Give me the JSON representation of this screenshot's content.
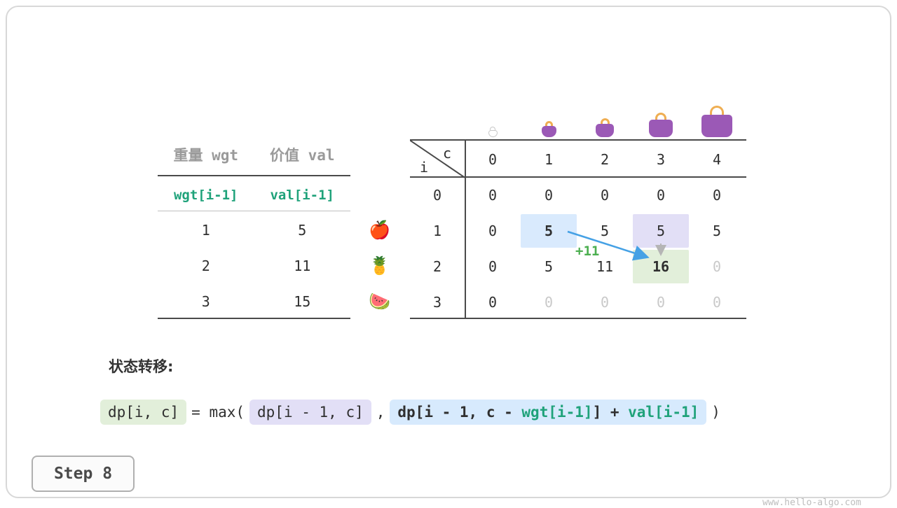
{
  "item_table": {
    "headers": [
      "重量 wgt",
      "价值 val"
    ],
    "subheaders": [
      "wgt[i-1]",
      "val[i-1]"
    ],
    "rows": [
      {
        "wgt": "1",
        "val": "5",
        "icon": "apple-icon"
      },
      {
        "wgt": "2",
        "val": "11",
        "icon": "pineapple-icon"
      },
      {
        "wgt": "3",
        "val": "15",
        "icon": "watermelon-icon"
      }
    ]
  },
  "dp_table": {
    "corner": {
      "row_var": "i",
      "col_var": "c"
    },
    "col_labels": [
      "0",
      "1",
      "2",
      "3",
      "4"
    ],
    "row_labels": [
      "0",
      "1",
      "2",
      "3"
    ],
    "bags": [
      {
        "name": "bag-capacity-0-icon",
        "style": "outline"
      },
      {
        "name": "bag-capacity-1-icon",
        "style": "purple"
      },
      {
        "name": "bag-capacity-2-icon",
        "style": "purple"
      },
      {
        "name": "bag-capacity-3-icon",
        "style": "purple"
      },
      {
        "name": "bag-capacity-4-icon",
        "style": "purple"
      }
    ],
    "cells": [
      [
        {
          "v": "0"
        },
        {
          "v": "0"
        },
        {
          "v": "0"
        },
        {
          "v": "0"
        },
        {
          "v": "0"
        }
      ],
      [
        {
          "v": "0"
        },
        {
          "v": "5",
          "bold": true,
          "hl": "blue"
        },
        {
          "v": "5"
        },
        {
          "v": "5",
          "hl": "purple"
        },
        {
          "v": "5"
        }
      ],
      [
        {
          "v": "0"
        },
        {
          "v": "5"
        },
        {
          "v": "11"
        },
        {
          "v": "16",
          "bold": true,
          "hl": "green"
        },
        {
          "v": "0",
          "dim": true
        }
      ],
      [
        {
          "v": "0"
        },
        {
          "v": "0",
          "dim": true
        },
        {
          "v": "0",
          "dim": true
        },
        {
          "v": "0",
          "dim": true
        },
        {
          "v": "0",
          "dim": true
        }
      ]
    ],
    "annotation": "+11"
  },
  "formula": {
    "section_title": "状态转移:",
    "lhs": "dp[i, c]",
    "eq": "= max(",
    "keep_term": "dp[i - 1, c]",
    "comma": ",",
    "take_prefix": "dp[i - 1, c - ",
    "take_wgt": "wgt[i-1]",
    "take_mid": "] + ",
    "take_val": "val[i-1]",
    "close": ")"
  },
  "footer": {
    "step_label": "Step 8",
    "watermark": "www.hello-algo.com"
  },
  "colors": {
    "accent_green": "#1fa27a",
    "annotation_green": "#4caf50",
    "arrow_blue": "#45a1e5",
    "highlight_blue": "#d9eafd",
    "highlight_purple": "#e2dff6",
    "highlight_green": "#e2efda",
    "bag_purple": "#9b59b6",
    "bag_handle_orange": "#efae52"
  }
}
